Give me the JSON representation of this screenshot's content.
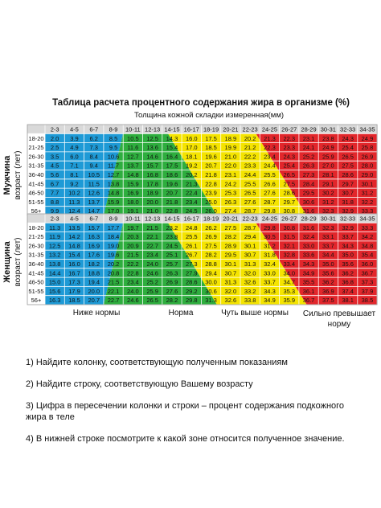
{
  "title": "Таблица расчета процентного содержания жира в организме (%)",
  "subtitle": "Толщина кожной складки измеренная(мм)",
  "men_label": {
    "title": "Мужчина",
    "sub": "возраст (лет)"
  },
  "women_label": {
    "title": "Женщина",
    "sub": "возраст (лет)"
  },
  "columns": [
    "2-3",
    "4-5",
    "6-7",
    "8-9",
    "10-11",
    "12-13",
    "14-15",
    "16-17",
    "18-19",
    "20-21",
    "22-23",
    "24-25",
    "26-27",
    "28-29",
    "30-31",
    "32-33",
    "34-35"
  ],
  "age_rows": [
    "18-20",
    "21-25",
    "26-30",
    "31-35",
    "36-40",
    "41-45",
    "46-50",
    "51-55",
    "56+"
  ],
  "men": [
    [
      "2.0",
      "3.9",
      "6.2",
      "8.5",
      "10.5",
      "12.5",
      "14.3",
      "16.0",
      "17.5",
      "18.9",
      "20.2",
      "21.3",
      "22.3",
      "23.1",
      "23.8",
      "24.3",
      "24.9"
    ],
    [
      "2.5",
      "4.9",
      "7.3",
      "9.5",
      "11.6",
      "13.6",
      "15.4",
      "17.0",
      "18.5",
      "19.9",
      "21.2",
      "22.3",
      "23.3",
      "24.1",
      "24.9",
      "25.4",
      "25.8"
    ],
    [
      "3.5",
      "6.0",
      "8.4",
      "10.6",
      "12.7",
      "14.6",
      "16.4",
      "18.1",
      "19.6",
      "21.0",
      "22.2",
      "23.4",
      "24.3",
      "25.2",
      "25.9",
      "26.5",
      "26.9"
    ],
    [
      "4.5",
      "7.1",
      "9.4",
      "11.7",
      "13.7",
      "15.7",
      "17.5",
      "19.2",
      "20.7",
      "22.0",
      "23.3",
      "24.4",
      "25.4",
      "26.3",
      "27.0",
      "27.5",
      "28.0"
    ],
    [
      "5.6",
      "8.1",
      "10.5",
      "12.7",
      "14.8",
      "16.8",
      "18.6",
      "20.2",
      "21.8",
      "23.1",
      "24.4",
      "25.5",
      "26.5",
      "27.3",
      "28.1",
      "28.6",
      "29.0"
    ],
    [
      "6.7",
      "9.2",
      "11.5",
      "13.8",
      "15.9",
      "17.8",
      "19.6",
      "21.3",
      "22.8",
      "24.2",
      "25.5",
      "26.6",
      "27.5",
      "28.4",
      "29.1",
      "29.7",
      "30.1"
    ],
    [
      "7.7",
      "10.2",
      "12.6",
      "14.8",
      "16.9",
      "18.9",
      "20.7",
      "22.4",
      "23.9",
      "25.3",
      "26.5",
      "27.6",
      "28.6",
      "29.5",
      "30.2",
      "30.7",
      "31.2"
    ],
    [
      "8.8",
      "11.3",
      "13.7",
      "15.9",
      "18.0",
      "20.0",
      "21.8",
      "23.4",
      "25.0",
      "26.3",
      "27.6",
      "28.7",
      "29.7",
      "30.6",
      "31.2",
      "31.8",
      "32.2"
    ],
    [
      "9.9",
      "12.4",
      "14.7",
      "17.0",
      "19.1",
      "21.0",
      "22.8",
      "24.5",
      "26.0",
      "27.4",
      "28.7",
      "29.8",
      "30.8",
      "31.6",
      "32.3",
      "32.9",
      "33.3"
    ]
  ],
  "women": [
    [
      "11.3",
      "13.5",
      "15.7",
      "17.7",
      "19.7",
      "21.5",
      "23.2",
      "24.8",
      "26.2",
      "27.5",
      "28.7",
      "29.8",
      "30.8",
      "31.6",
      "32.3",
      "32.9",
      "33.3"
    ],
    [
      "11.9",
      "14.2",
      "16.3",
      "18.4",
      "20.3",
      "22.1",
      "23.8",
      "25.5",
      "26.9",
      "28.2",
      "29.4",
      "30.5",
      "31.5",
      "32.4",
      "33.1",
      "33.7",
      "34.2"
    ],
    [
      "12.5",
      "14.8",
      "16.9",
      "19.0",
      "20.9",
      "22.7",
      "24.5",
      "26.1",
      "27.5",
      "28.9",
      "30.1",
      "31.2",
      "32.1",
      "33.0",
      "33.7",
      "34.3",
      "34.8"
    ],
    [
      "13.2",
      "15.4",
      "17.6",
      "19.6",
      "21.5",
      "23.4",
      "25.1",
      "26.7",
      "28.2",
      "29.5",
      "30.7",
      "31.8",
      "32.8",
      "33.6",
      "34.4",
      "35.0",
      "35.4"
    ],
    [
      "13.8",
      "16.0",
      "18.2",
      "20.2",
      "22.2",
      "24.0",
      "25.7",
      "27.3",
      "28.8",
      "30.1",
      "31.3",
      "32.4",
      "33.4",
      "34.3",
      "35.0",
      "35.6",
      "36.0"
    ],
    [
      "14.4",
      "16.7",
      "18.8",
      "20.8",
      "22.8",
      "24.6",
      "26.3",
      "27.9",
      "29.4",
      "30.7",
      "32.0",
      "33.0",
      "34.0",
      "34.9",
      "35.6",
      "36.2",
      "36.7"
    ],
    [
      "15.0",
      "17.3",
      "19.4",
      "21.5",
      "23.4",
      "25.2",
      "26.9",
      "28.6",
      "30.0",
      "31.3",
      "32.6",
      "33.7",
      "34.7",
      "35.5",
      "36.2",
      "36.8",
      "37.3"
    ],
    [
      "15.6",
      "17.9",
      "20.0",
      "22.1",
      "24.0",
      "25.9",
      "27.6",
      "29.2",
      "30.6",
      "32.0",
      "33.2",
      "34.3",
      "35.3",
      "36.1",
      "36.9",
      "37.4",
      "37.9"
    ],
    [
      "16.3",
      "18.5",
      "20.7",
      "22.7",
      "24.6",
      "26.5",
      "28.2",
      "29.8",
      "31.3",
      "32.6",
      "33.8",
      "34.9",
      "35.9",
      "36.7",
      "37.5",
      "38.1",
      "38.5"
    ]
  ],
  "zones": [
    {
      "label": "Ниже нормы",
      "color": "#1e9ad6"
    },
    {
      "label": "Норма",
      "color": "#2eae3e"
    },
    {
      "label": "Чуть выше нормы",
      "color": "#f5e400"
    },
    {
      "label": "Сильно превышает норму",
      "color": "#e2262b"
    }
  ],
  "instructions": [
    "1) Найдите колонку, соответствующую полученным показаниям",
    "2) Найдите строку, соответствующую Вашему возрасту",
    "3) Цифра в пересечении колонки и строки – процент содержания подкожного жира в теле",
    "4) В нижней строке посмотрите к какой зоне относится полученное значение."
  ]
}
